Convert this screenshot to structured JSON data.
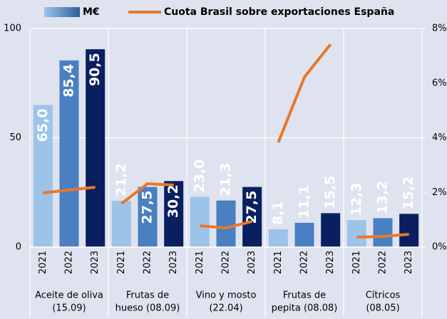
{
  "chart_data": {
    "type": "bar_line",
    "groups": [
      {
        "label": [
          "Aceite de oliva",
          "(15.09)"
        ],
        "categories": [
          "2021",
          "2022",
          "2023"
        ]
      },
      {
        "label": [
          "Frutas de",
          "hueso (08.09)"
        ],
        "categories": [
          "2021",
          "2022",
          "2023"
        ]
      },
      {
        "label": [
          "Vino y mosto",
          "(22.04)"
        ],
        "categories": [
          "2021",
          "2022",
          "2023"
        ]
      },
      {
        "label": [
          "Frutas de",
          "pepita (08.08)"
        ],
        "categories": [
          "2021",
          "2022",
          "2023"
        ]
      },
      {
        "label": [
          "Cítricos",
          "(08.05)"
        ],
        "categories": [
          "2021",
          "2022",
          "2023"
        ]
      }
    ],
    "series": [
      {
        "name": "M€",
        "type": "bar",
        "colors": [
          "#9dc3e9",
          "#4a7fc1",
          "#0a1f5f"
        ],
        "values": [
          [
            65.0,
            85.4,
            90.5
          ],
          [
            21.2,
            27.5,
            30.2
          ],
          [
            23.0,
            21.3,
            27.5
          ],
          [
            8.1,
            11.1,
            15.5
          ],
          [
            12.3,
            13.2,
            15.2
          ]
        ],
        "value_labels": [
          [
            "65,0",
            "85,4",
            "90,5"
          ],
          [
            "21,2",
            "27,5",
            "30,2"
          ],
          [
            "23,0",
            "21,3",
            "27,5"
          ],
          [
            "8,1",
            "11,1",
            "15,5"
          ],
          [
            "12,3",
            "13,2",
            "15,2"
          ]
        ]
      },
      {
        "name": "Cuota Brasil sobre exportaciones España",
        "type": "line",
        "axis": "y2",
        "color": "#e8782a",
        "values": [
          [
            1.98,
            2.09,
            2.19
          ],
          [
            1.59,
            2.32,
            2.27
          ],
          [
            0.78,
            0.7,
            0.94
          ],
          [
            3.83,
            6.22,
            7.42
          ],
          [
            0.36,
            0.39,
            0.47
          ]
        ]
      }
    ],
    "ylim": [
      0,
      100
    ],
    "yticks": [
      0,
      50,
      100
    ],
    "y2lim": [
      0,
      8
    ],
    "y2ticks": [
      {
        "value": 0,
        "label": "0%"
      },
      {
        "value": 2,
        "label": "2%"
      },
      {
        "value": 4,
        "label": "4%"
      },
      {
        "value": 6,
        "label": "6%"
      },
      {
        "value": 8,
        "label": "8%"
      }
    ],
    "grid": true
  }
}
